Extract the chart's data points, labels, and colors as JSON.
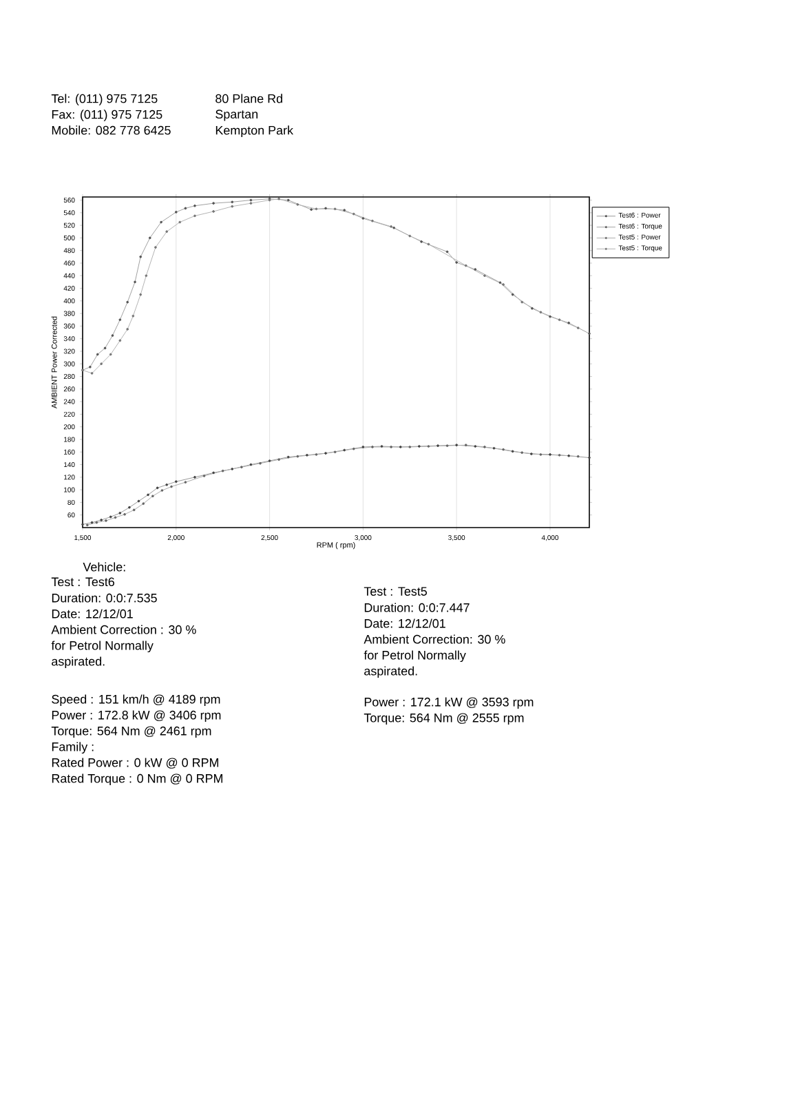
{
  "chart_data": {
    "type": "line",
    "xlabel": "RPM ( rpm)",
    "ylabel": "AMBIENT Power Corrected",
    "xlim": [
      1500,
      4210
    ],
    "ylim": [
      40,
      565
    ],
    "xticks": [
      {
        "value": 1500,
        "label": "1,500"
      },
      {
        "value": 2000,
        "label": "2,000"
      },
      {
        "value": 2500,
        "label": "2,500"
      },
      {
        "value": 3000,
        "label": "3,000"
      },
      {
        "value": 3500,
        "label": "3,500"
      },
      {
        "value": 4000,
        "label": "4,000"
      }
    ],
    "yticks": [
      60,
      80,
      100,
      120,
      140,
      160,
      180,
      200,
      220,
      240,
      260,
      280,
      300,
      320,
      340,
      360,
      380,
      400,
      420,
      440,
      460,
      480,
      500,
      520,
      540,
      560
    ],
    "grid": "x",
    "legend": "top right",
    "marker": "circle",
    "line_style": "solid",
    "series": [
      {
        "name": "Test6 : Power",
        "color": "#444444",
        "x": [
          1500,
          1550,
          1600,
          1650,
          1700,
          1750,
          1800,
          1850,
          1900,
          1950,
          2000,
          2100,
          2200,
          2300,
          2400,
          2500,
          2600,
          2700,
          2800,
          2900,
          3000,
          3100,
          3200,
          3300,
          3400,
          3500,
          3600,
          3700,
          3800,
          3900,
          4000,
          4100,
          4210
        ],
        "values": [
          45,
          48,
          52,
          57,
          63,
          72,
          82,
          92,
          103,
          108,
          113,
          120,
          127,
          133,
          140,
          146,
          152,
          155,
          158,
          163,
          168,
          169,
          168,
          169,
          170,
          171,
          169,
          166,
          161,
          157,
          156,
          154,
          151
        ]
      },
      {
        "name": "Test6 : Torque",
        "color": "#555555",
        "x": [
          1500,
          1540,
          1580,
          1620,
          1660,
          1700,
          1740,
          1780,
          1810,
          1860,
          1920,
          2000,
          2050,
          2100,
          2200,
          2300,
          2400,
          2500,
          2600,
          2723,
          2800,
          2900,
          3000,
          3165,
          3312,
          3450,
          3500,
          3600,
          3733,
          3800,
          3904,
          4000,
          4100,
          4210
        ],
        "values": [
          290,
          295,
          315,
          325,
          345,
          370,
          398,
          430,
          470,
          500,
          525,
          541,
          547,
          551,
          555,
          557,
          560,
          562,
          560,
          545,
          547,
          544,
          531,
          516,
          494,
          478,
          461,
          450,
          429,
          410,
          388,
          375,
          365,
          348
        ]
      },
      {
        "name": "Test5 : Power",
        "color": "#666666",
        "x": [
          1525,
          1575,
          1625,
          1675,
          1725,
          1775,
          1825,
          1875,
          1925,
          1975,
          2050,
          2150,
          2250,
          2350,
          2450,
          2550,
          2650,
          2750,
          2850,
          2950,
          3050,
          3150,
          3250,
          3350,
          3450,
          3550,
          3650,
          3750,
          3850,
          3950,
          4050,
          4150
        ],
        "values": [
          44,
          48,
          51,
          56,
          61,
          68,
          78,
          90,
          99,
          105,
          112,
          122,
          130,
          136,
          142,
          148,
          153,
          156,
          160,
          165,
          168,
          168,
          168,
          169,
          170,
          171,
          168,
          164,
          159,
          156,
          155,
          153
        ]
      },
      {
        "name": "Test5 : Torque",
        "color": "#777777",
        "x": [
          1500,
          1550,
          1600,
          1650,
          1700,
          1740,
          1770,
          1810,
          1840,
          1890,
          1950,
          2020,
          2100,
          2200,
          2300,
          2400,
          2500,
          2550,
          2650,
          2750,
          2850,
          2950,
          3050,
          3150,
          3250,
          3350,
          3550,
          3650,
          3750,
          3850,
          3950,
          4050,
          4150
        ],
        "values": [
          290,
          285,
          300,
          315,
          337,
          355,
          376,
          410,
          440,
          485,
          510,
          525,
          535,
          542,
          550,
          555,
          560,
          562,
          553,
          546,
          546,
          538,
          527,
          518,
          503,
          490,
          456,
          440,
          426,
          398,
          382,
          370,
          357
        ]
      }
    ],
    "annotations": [
      "Tel: (011) 975 7125",
      "Fax: (011) 975 7125",
      "Mobile: 082 778 6425",
      "80 Plane Rd",
      "Spartan",
      "Kempton Park",
      "Vehicle:",
      "Test : Test6",
      "Duration: 0:0:7.535",
      "Date: 12/12/01",
      "Ambient Correction : 30 %",
      "for Petrol Normally",
      "aspirated.",
      "Speed : 151 km/h @ 4189 rpm",
      "Power : 172.8 kW @ 3406 rpm",
      "Torque: 564 Nm @ 2461 rpm",
      "Family :",
      "Rated Power : 0 kW @ 0 RPM",
      "Rated Torque : 0 Nm @ 0 RPM",
      "Test : Test5",
      "Duration: 0:0:7.447",
      "Date: 12/12/01",
      "Ambient Correction: 30 %",
      "for Petrol Normally",
      "aspirated.",
      "Power : 172.1 kW @ 3593 rpm",
      "Torque: 564 Nm @ 2555 rpm"
    ]
  }
}
